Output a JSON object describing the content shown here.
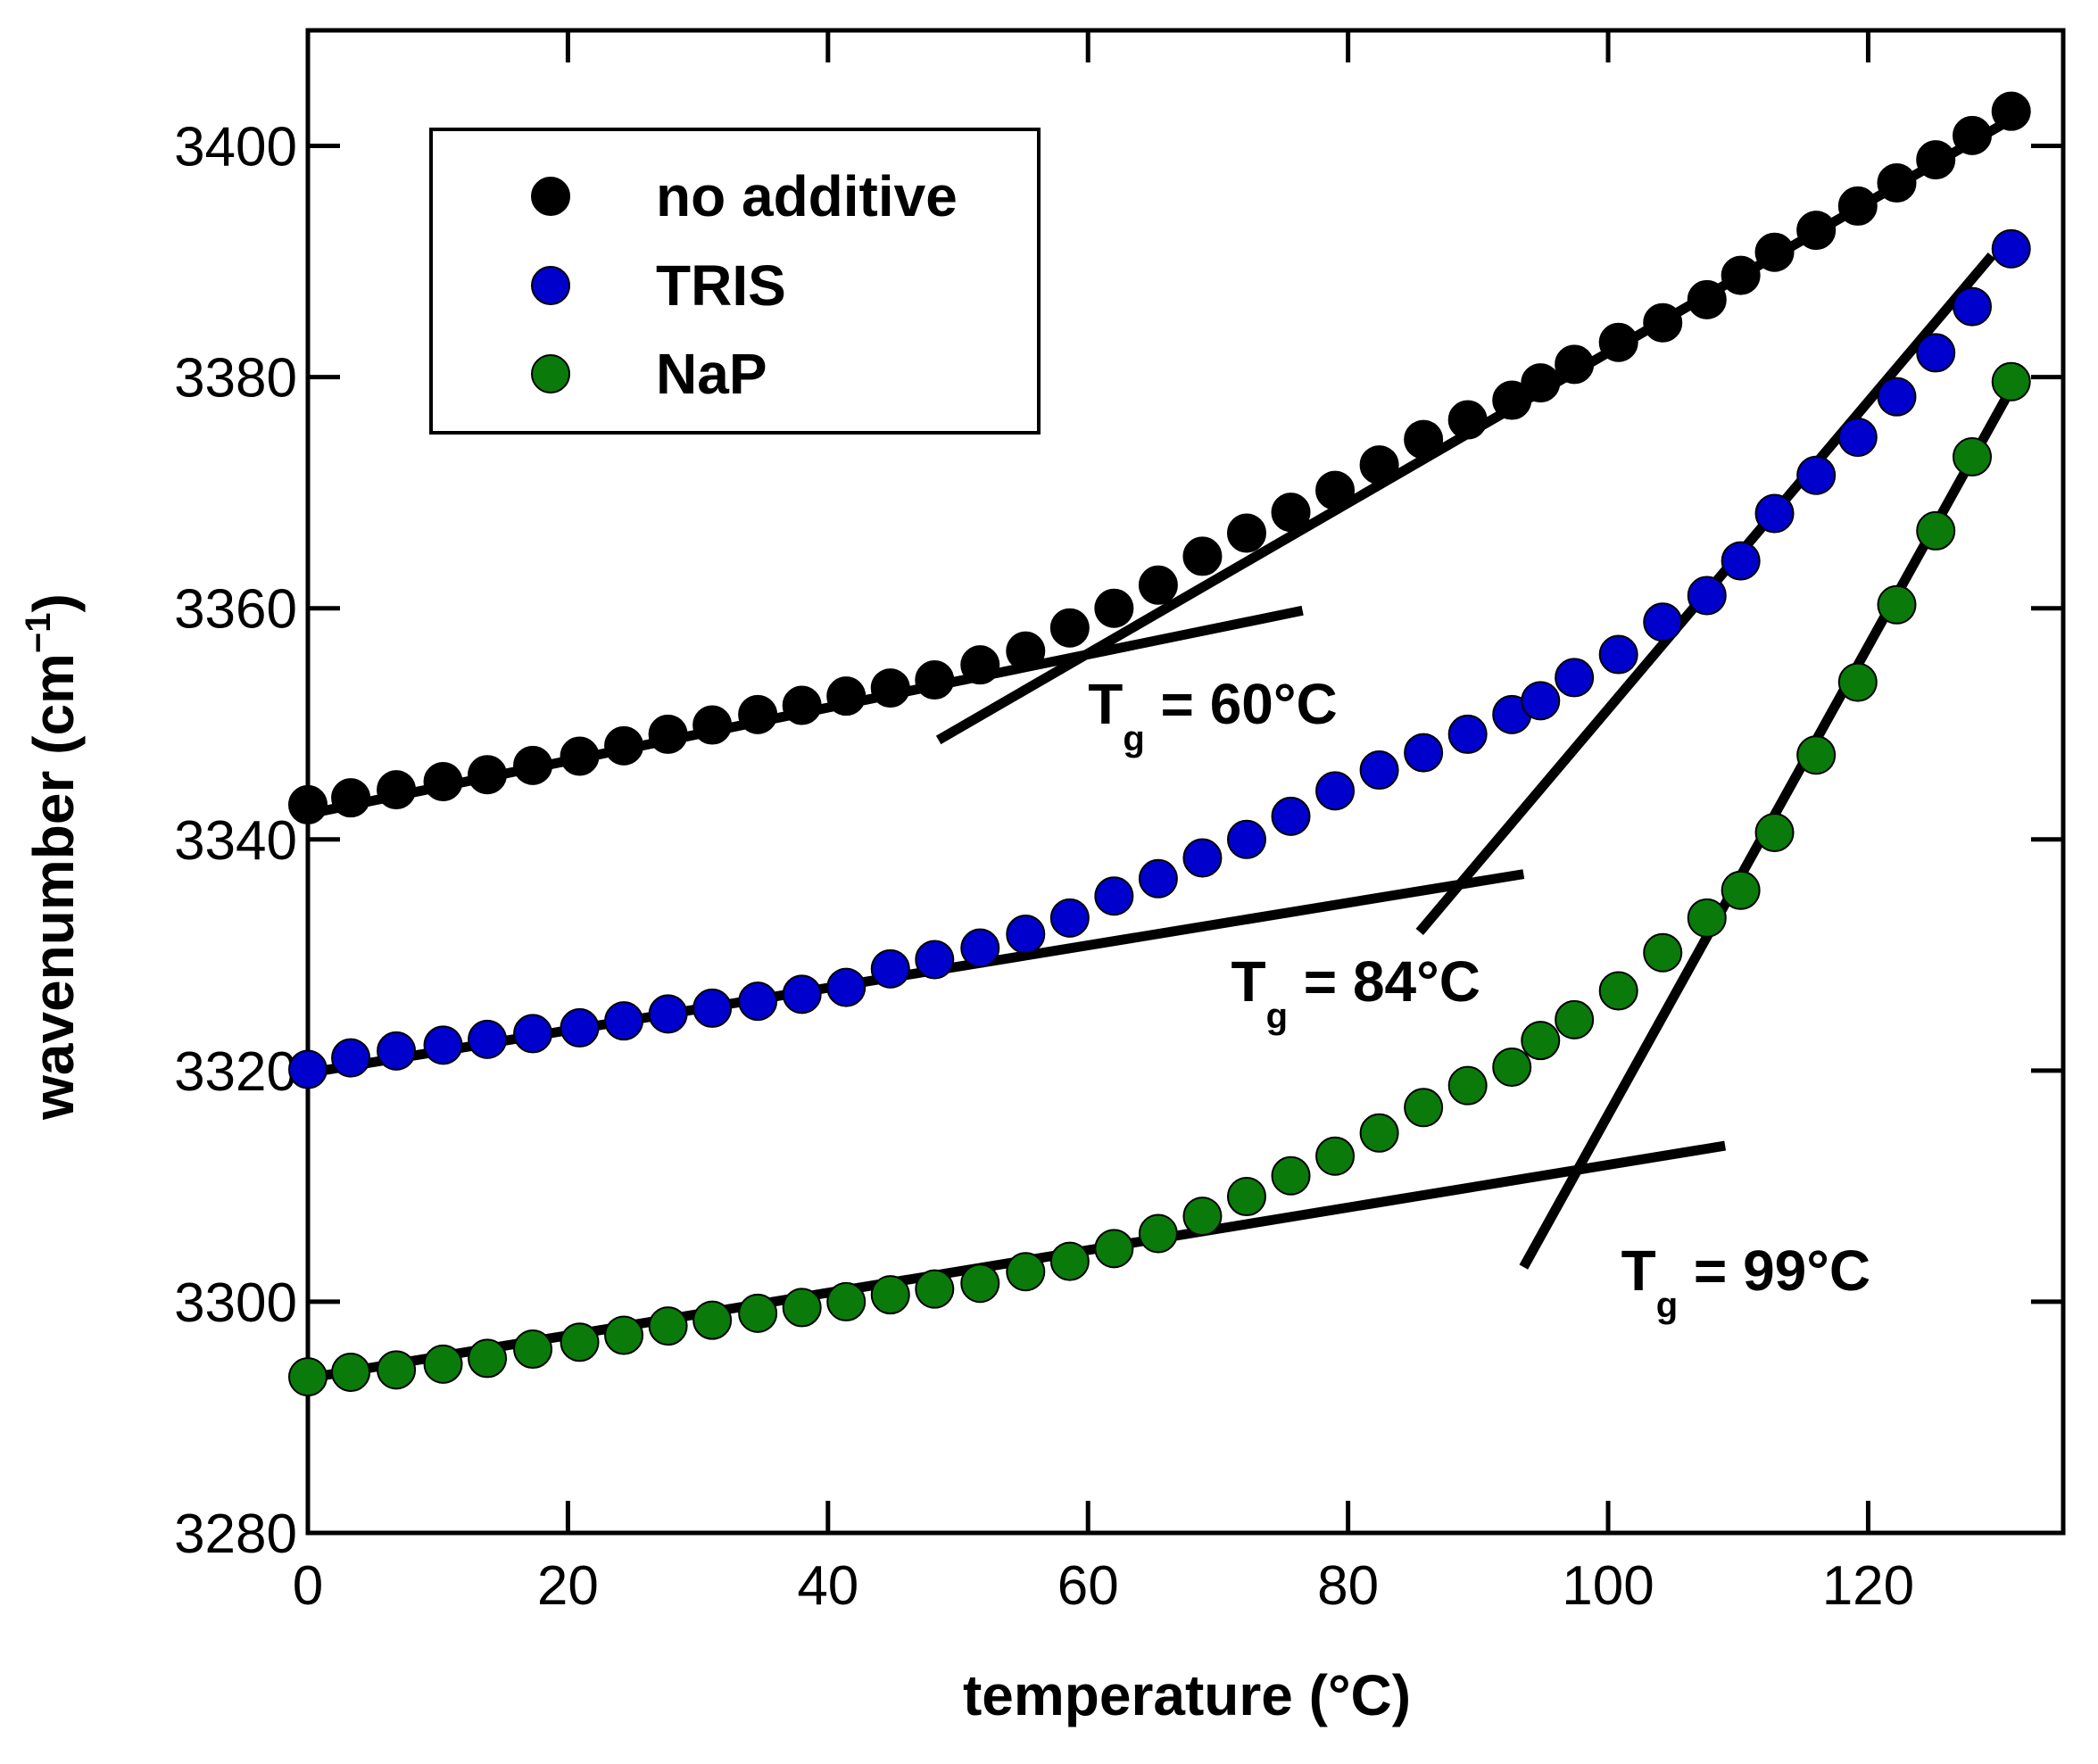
{
  "chart_data": {
    "type": "scatter",
    "title": "",
    "xlabel": "temperature (°C)",
    "ylabel_main": "wavenumber (cm",
    "ylabel_sup": "−1",
    "ylabel_close": ")",
    "xlim": [
      0,
      135
    ],
    "ylim": [
      3280,
      3410
    ],
    "xticks": [
      0,
      20,
      40,
      60,
      80,
      100,
      120
    ],
    "yticks": [
      3280,
      3300,
      3320,
      3340,
      3360,
      3380,
      3400
    ],
    "x": [
      0,
      3.3,
      6.8,
      10.4,
      13.8,
      17.3,
      20.9,
      24.3,
      27.7,
      31.1,
      34.6,
      38.0,
      41.4,
      44.8,
      48.2,
      51.7,
      55.2,
      58.6,
      62.0,
      65.4,
      68.8,
      72.2,
      75.6,
      79.0,
      82.4,
      85.8,
      89.2,
      92.6,
      94.8,
      97.4,
      100.8,
      104.2,
      107.6,
      110.2,
      112.8,
      116.0,
      119.2,
      122.2,
      125.2,
      128.0,
      131.0
    ],
    "series": [
      {
        "name": "no additive",
        "color": "#000000",
        "values": [
          3343.0,
          3343.6,
          3344.3,
          3345.0,
          3345.6,
          3346.4,
          3347.2,
          3348.1,
          3349.1,
          3349.9,
          3350.8,
          3351.6,
          3352.4,
          3353.1,
          3353.8,
          3355.1,
          3356.3,
          3358.3,
          3360.0,
          3362.0,
          3364.5,
          3366.5,
          3368.3,
          3370.2,
          3372.4,
          3374.6,
          3376.3,
          3378.0,
          3379.5,
          3381.1,
          3383.0,
          3384.7,
          3386.7,
          3388.8,
          3390.8,
          3392.7,
          3394.8,
          3396.8,
          3398.8,
          3400.9,
          3403.0
        ]
      },
      {
        "name": "TRIS",
        "color": "#0000cc",
        "values": [
          3320.1,
          3321.1,
          3321.7,
          3322.2,
          3322.7,
          3323.2,
          3323.7,
          3324.3,
          3324.9,
          3325.4,
          3326.0,
          3326.6,
          3327.2,
          3328.8,
          3329.6,
          3330.6,
          3331.8,
          3333.2,
          3335.1,
          3336.6,
          3338.4,
          3340.0,
          3342.0,
          3344.2,
          3346.0,
          3347.5,
          3349.1,
          3350.8,
          3352.0,
          3354.0,
          3356.0,
          3358.8,
          3361.1,
          3364.1,
          3368.2,
          3371.5,
          3374.8,
          3378.3,
          3382.1,
          3386.1,
          3391.1
        ]
      },
      {
        "name": "NaP",
        "color": "#0a7a0a",
        "values": [
          3293.5,
          3293.9,
          3294.1,
          3294.6,
          3295.1,
          3295.9,
          3296.5,
          3297.1,
          3297.9,
          3298.4,
          3299.0,
          3299.5,
          3300.0,
          3300.6,
          3301.1,
          3301.6,
          3302.6,
          3303.5,
          3304.6,
          3305.9,
          3307.4,
          3309.1,
          3310.9,
          3312.6,
          3314.6,
          3316.8,
          3318.7,
          3320.3,
          3322.6,
          3324.4,
          3326.9,
          3330.2,
          3333.2,
          3335.6,
          3340.6,
          3347.3,
          3353.6,
          3360.3,
          3366.7,
          3373.1,
          3379.6
        ]
      }
    ],
    "fit_lines": [
      {
        "name": "no-additive-low-fit",
        "x": [
          0,
          76.5
        ],
        "y": [
          3342.2,
          3359.8
        ]
      },
      {
        "name": "no-additive-high-fit",
        "x": [
          48.5,
          131
        ],
        "y": [
          3348.6,
          3402.3
        ]
      },
      {
        "name": "tris-low-fit",
        "x": [
          0,
          93.5
        ],
        "y": [
          3319.8,
          3337.0
        ]
      },
      {
        "name": "tris-high-fit",
        "x": [
          85.5,
          129.5
        ],
        "y": [
          3332.0,
          3390.5
        ]
      },
      {
        "name": "nap-low-fit",
        "x": [
          0,
          109
        ],
        "y": [
          3293.4,
          3313.5
        ]
      },
      {
        "name": "nap-high-fit",
        "x": [
          93.5,
          131
        ],
        "y": [
          3303.0,
          3379.0
        ]
      }
    ],
    "legend": {
      "placement": "top-left",
      "entries": [
        "no additive",
        "TRIS",
        "NaP"
      ]
    },
    "annotations": [
      {
        "main": "T",
        "sub": "g",
        "rest": " = 60°C",
        "x": 60,
        "y": 3350
      },
      {
        "main": "T",
        "sub": "g",
        "rest": " = 84°C",
        "x": 71,
        "y": 3326
      },
      {
        "main": "T",
        "sub": "g",
        "rest": " = 99°C",
        "x": 101,
        "y": 3301
      }
    ]
  }
}
